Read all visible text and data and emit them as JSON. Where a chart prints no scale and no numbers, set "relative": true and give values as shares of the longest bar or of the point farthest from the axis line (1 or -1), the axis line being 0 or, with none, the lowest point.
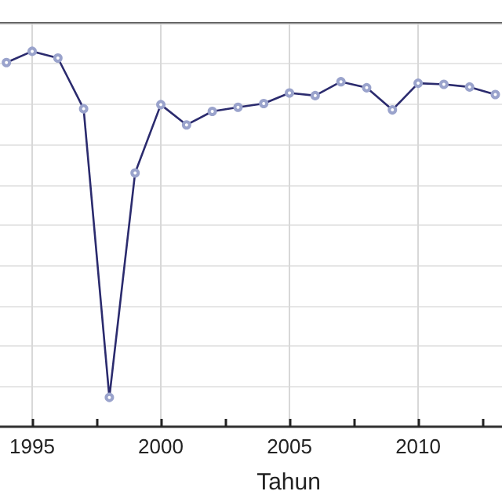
{
  "chart_data": {
    "type": "line",
    "relative": true,
    "xlabel": "Tahun",
    "x": [
      1994,
      1995,
      1996,
      1997,
      1998,
      1999,
      2000,
      2001,
      2002,
      2003,
      2004,
      2005,
      2006,
      2007,
      2008,
      2009,
      2010,
      2011,
      2012,
      2013
    ],
    "series": [
      {
        "color": "#2b2b6e",
        "values": [
          0.97,
          1,
          0.982,
          0.847,
          0.078,
          0.676,
          0.858,
          0.804,
          0.84,
          0.851,
          0.861,
          0.889,
          0.882,
          0.919,
          0.903,
          0.844,
          0.915,
          0.912,
          0.905,
          0.885
        ]
      }
    ],
    "xlim": [
      1993.75,
      2013.26
    ],
    "xticks": [
      1995,
      {
        "value": 1997.5,
        "label": null
      },
      2000,
      {
        "value": 2002.5,
        "label": null
      },
      2005,
      {
        "value": 2007.5,
        "label": null
      },
      2010,
      {
        "value": 2012.5,
        "label": null
      }
    ],
    "grid": true,
    "marker": "circle",
    "line_style": "solid"
  }
}
